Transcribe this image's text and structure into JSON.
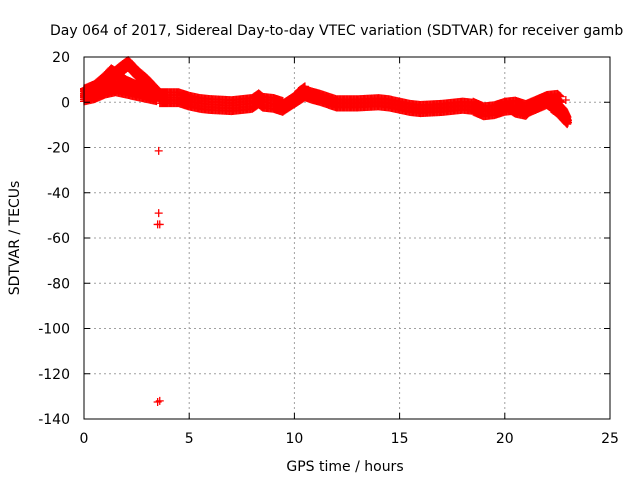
{
  "chart_data": {
    "type": "scatter",
    "title": "Day 064 of 2017, Sidereal Day-to-day VTEC variation (SDTVAR) for receiver gamb",
    "xlabel": "GPS time / hours",
    "ylabel": "SDTVAR / TECUs",
    "xlim": [
      0,
      25
    ],
    "ylim": [
      -140,
      20
    ],
    "xticks": [
      0,
      5,
      10,
      15,
      20,
      25
    ],
    "yticks": [
      20,
      0,
      -20,
      -40,
      -60,
      -80,
      -100,
      -120,
      -140
    ],
    "grid": true,
    "marker": "+",
    "series": [
      {
        "name": "SDTVAR",
        "color": "#ff0000",
        "bands": [
          {
            "thickness": 1.8,
            "points": [
              [
                0,
                3
              ],
              [
                0.5,
                4
              ],
              [
                1,
                6
              ],
              [
                1.5,
                7
              ],
              [
                2,
                8
              ],
              [
                2.5,
                6
              ],
              [
                3,
                4
              ],
              [
                3.5,
                3
              ]
            ]
          },
          {
            "thickness": 1.6,
            "points": [
              [
                0,
                4
              ],
              [
                0.5,
                5
              ],
              [
                1,
                8
              ],
              [
                1.4,
                12
              ],
              [
                1.8,
                15
              ],
              [
                2.1,
                17
              ],
              [
                2.5,
                13
              ],
              [
                3,
                9
              ],
              [
                3.4,
                5
              ],
              [
                3.6,
                3
              ]
            ]
          },
          {
            "thickness": 1.6,
            "points": [
              [
                0,
                2
              ],
              [
                0.5,
                3
              ],
              [
                1,
                5
              ],
              [
                1.5,
                6
              ],
              [
                2,
                5
              ],
              [
                2.5,
                4
              ],
              [
                3,
                3
              ],
              [
                3.5,
                2
              ]
            ]
          },
          {
            "thickness": 1.0,
            "points": [
              [
                0,
                5
              ],
              [
                0.5,
                7
              ],
              [
                1,
                11
              ],
              [
                1.3,
                14
              ],
              [
                1.6,
                12
              ],
              [
                2,
                9
              ],
              [
                2.5,
                7
              ],
              [
                3,
                6
              ],
              [
                3.5,
                4
              ]
            ]
          },
          {
            "thickness": 2.4,
            "points": [
              [
                3.6,
                2
              ],
              [
                4,
                2
              ],
              [
                4.5,
                2
              ],
              [
                5,
                0.5
              ],
              [
                5.5,
                -0.5
              ],
              [
                6,
                -1
              ],
              [
                7,
                -1.5
              ],
              [
                7.5,
                -1
              ],
              [
                8,
                -0.5
              ],
              [
                8.3,
                1.5
              ],
              [
                8.5,
                0
              ],
              [
                9,
                -0.5
              ],
              [
                9.5,
                -2
              ]
            ]
          },
          {
            "thickness": 1.8,
            "points": [
              [
                9.5,
                -2
              ],
              [
                10,
                1
              ],
              [
                10.5,
                4
              ],
              [
                10.8,
                3
              ],
              [
                11.2,
                2
              ],
              [
                12,
                -0.5
              ],
              [
                13,
                -0.5
              ],
              [
                14,
                0
              ],
              [
                14.5,
                -0.5
              ],
              [
                15,
                -1.5
              ],
              [
                15.5,
                -2.5
              ],
              [
                16,
                -3
              ],
              [
                17,
                -2.5
              ],
              [
                18,
                -1.5
              ],
              [
                18.5,
                -2
              ]
            ]
          },
          {
            "thickness": 1.0,
            "points": [
              [
                9.8,
                0
              ],
              [
                10.2,
                3
              ],
              [
                10.5,
                6
              ],
              [
                10.2,
                4
              ],
              [
                10,
                1
              ]
            ]
          },
          {
            "thickness": 2.2,
            "points": [
              [
                18.5,
                -2
              ],
              [
                19,
                -4
              ],
              [
                19.5,
                -3.5
              ],
              [
                20,
                -2
              ],
              [
                20.5,
                -1.5
              ],
              [
                21,
                -3
              ],
              [
                21.5,
                -1
              ],
              [
                22,
                1
              ],
              [
                22.5,
                1.5
              ],
              [
                22.7,
                0
              ]
            ]
          },
          {
            "thickness": 1.0,
            "points": [
              [
                20,
                -1
              ],
              [
                20.5,
                -4
              ],
              [
                21,
                -5
              ],
              [
                21.5,
                0
              ],
              [
                22,
                2
              ],
              [
                22.5,
                -1
              ],
              [
                22.8,
                -4
              ],
              [
                23,
                -8
              ]
            ]
          },
          {
            "thickness": 1.0,
            "points": [
              [
                22.2,
                -2
              ],
              [
                22.5,
                -4
              ],
              [
                22.8,
                -7
              ],
              [
                23,
                -9
              ]
            ]
          }
        ],
        "isolated_points": [
          [
            3.55,
            -21.5
          ],
          [
            3.55,
            -49
          ],
          [
            3.5,
            -54
          ],
          [
            3.6,
            -54
          ],
          [
            3.5,
            -132.5
          ],
          [
            3.6,
            -132
          ]
        ],
        "extra_points": [
          [
            22.9,
            1
          ],
          [
            0,
            4
          ],
          [
            0.1,
            3
          ],
          [
            4,
            1
          ],
          [
            5,
            2
          ],
          [
            15,
            -1
          ],
          [
            23,
            -9
          ]
        ]
      }
    ]
  }
}
